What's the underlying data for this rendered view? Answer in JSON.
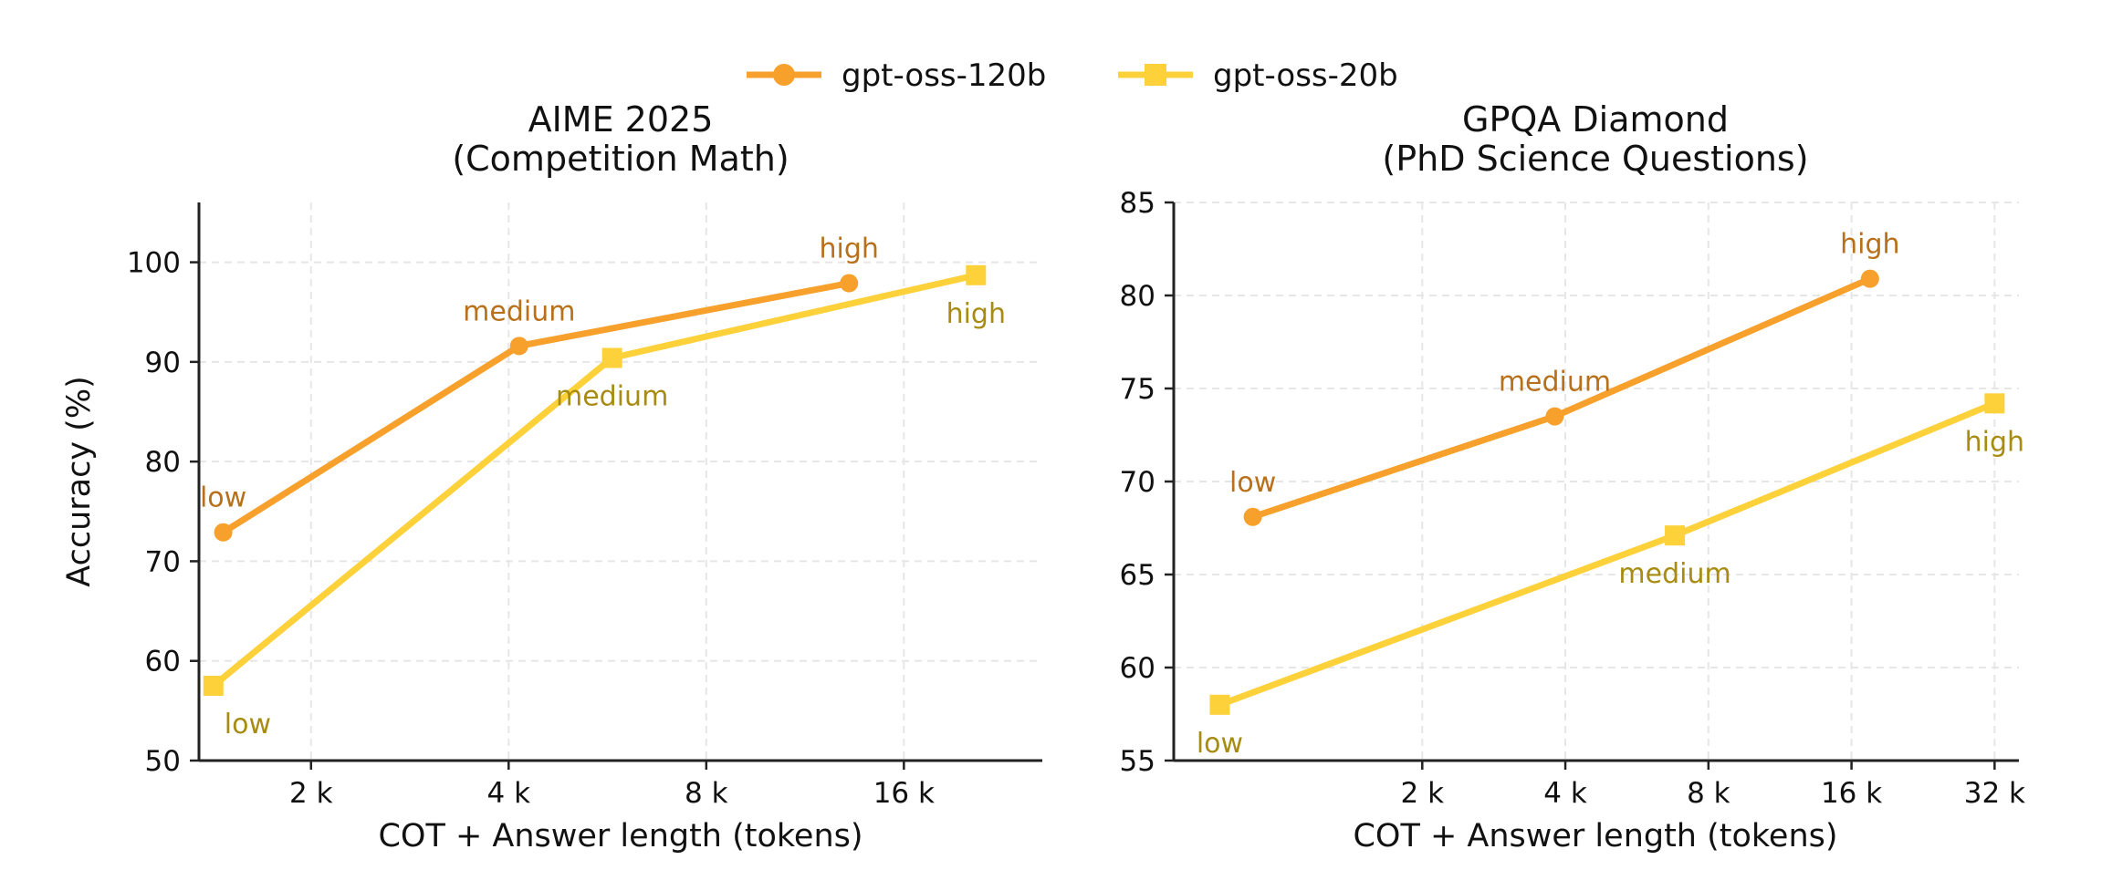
{
  "legend": {
    "placement": "top-center",
    "entries": [
      {
        "label": "gpt-oss-120b",
        "color": "#F7A12C",
        "marker": "circle"
      },
      {
        "label": "gpt-oss-20b",
        "color": "#FDD13A",
        "marker": "square"
      }
    ]
  },
  "ylabel": "Accuracy (%)",
  "colors": {
    "series_120b": "#F7A12C",
    "series_20b": "#FDD13A",
    "label_120b": "#B8701A",
    "label_20b": "#A88B12",
    "grid": "#e6e6e6",
    "axis": "#222222"
  },
  "chart_data": [
    {
      "type": "line",
      "title_line1": "AIME 2025",
      "title_line2": "(Competition Math)",
      "xlabel": "COT + Answer length (tokens)",
      "ylabel": "Accuracy (%)",
      "x_scale": "log2",
      "xlim": [
        1350,
        26000
      ],
      "ylim": [
        50,
        106
      ],
      "x_ticks": [
        {
          "value": 2000,
          "label": "2 k"
        },
        {
          "value": 4000,
          "label": "4 k"
        },
        {
          "value": 8000,
          "label": "8 k"
        },
        {
          "value": 16000,
          "label": "16 k"
        }
      ],
      "y_ticks": [
        {
          "value": 50,
          "label": "50"
        },
        {
          "value": 60,
          "label": "60"
        },
        {
          "value": 70,
          "label": "70"
        },
        {
          "value": 80,
          "label": "80"
        },
        {
          "value": 90,
          "label": "90"
        },
        {
          "value": 100,
          "label": "100"
        }
      ],
      "grid": true,
      "series": [
        {
          "name": "gpt-oss-120b",
          "marker": "circle",
          "points": [
            {
              "x": 1470,
              "y": 72.9,
              "label": "low",
              "label_pos": "above"
            },
            {
              "x": 4150,
              "y": 91.6,
              "label": "medium",
              "label_pos": "above"
            },
            {
              "x": 13200,
              "y": 97.9,
              "label": "high",
              "label_pos": "above"
            }
          ]
        },
        {
          "name": "gpt-oss-20b",
          "marker": "square",
          "points": [
            {
              "x": 1420,
              "y": 57.5,
              "label": "low",
              "label_pos": "below-right"
            },
            {
              "x": 5750,
              "y": 90.4,
              "label": "medium",
              "label_pos": "below"
            },
            {
              "x": 20600,
              "y": 98.7,
              "label": "high",
              "label_pos": "below"
            }
          ]
        }
      ]
    },
    {
      "type": "line",
      "title_line1": "GPQA Diamond",
      "title_line2": "(PhD Science Questions)",
      "xlabel": "COT + Answer length (tokens)",
      "ylabel": "",
      "x_scale": "log2",
      "xlim": [
        600,
        36000
      ],
      "ylim": [
        55,
        85
      ],
      "x_ticks": [
        {
          "value": 2000,
          "label": "2 k"
        },
        {
          "value": 4000,
          "label": "4 k"
        },
        {
          "value": 8000,
          "label": "8 k"
        },
        {
          "value": 16000,
          "label": "16 k"
        },
        {
          "value": 32000,
          "label": "32 k"
        }
      ],
      "y_ticks": [
        {
          "value": 55,
          "label": "55"
        },
        {
          "value": 60,
          "label": "60"
        },
        {
          "value": 65,
          "label": "65"
        },
        {
          "value": 70,
          "label": "70"
        },
        {
          "value": 75,
          "label": "75"
        },
        {
          "value": 80,
          "label": "80"
        },
        {
          "value": 85,
          "label": "85"
        }
      ],
      "grid": true,
      "series": [
        {
          "name": "gpt-oss-120b",
          "marker": "circle",
          "points": [
            {
              "x": 880,
              "y": 68.1,
              "label": "low",
              "label_pos": "above"
            },
            {
              "x": 3800,
              "y": 73.5,
              "label": "medium",
              "label_pos": "above"
            },
            {
              "x": 17500,
              "y": 80.9,
              "label": "high",
              "label_pos": "above"
            }
          ]
        },
        {
          "name": "gpt-oss-20b",
          "marker": "square",
          "points": [
            {
              "x": 750,
              "y": 58.0,
              "label": "low",
              "label_pos": "below"
            },
            {
              "x": 6800,
              "y": 67.1,
              "label": "medium",
              "label_pos": "below"
            },
            {
              "x": 32000,
              "y": 74.2,
              "label": "high",
              "label_pos": "below"
            }
          ]
        }
      ]
    }
  ]
}
